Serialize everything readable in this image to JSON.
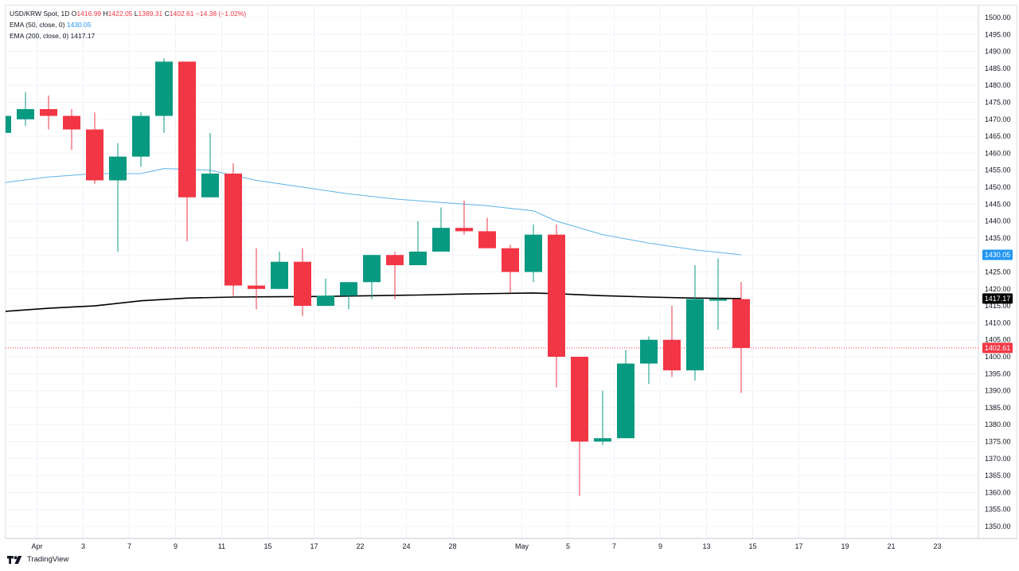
{
  "legend": {
    "symbol_line": "USD/KRW Spot, 1D",
    "o_label": "O",
    "o": "1416.99",
    "h_label": "H",
    "h": "1422.05",
    "l_label": "L",
    "l": "1389.31",
    "c_label": "C",
    "c": "1402.61",
    "change": "−14.38 (−1.02%)",
    "ema50_label": "EMA (50, close, 0)",
    "ema50_value": "1430.05",
    "ema200_label": "EMA (200, close, 0)",
    "ema200_value": "1417.17"
  },
  "attribution": "TradingView",
  "colors": {
    "up": "#089981",
    "down": "#f23645",
    "ema50": "#5fb4e6",
    "ema200": "#000000",
    "last_price_line": "#f23645",
    "grid": "#f0f3fa"
  },
  "chart_data": {
    "type": "candlestick",
    "title": "USD/KRW Spot, 1D",
    "ylim": [
      1346,
      1503
    ],
    "y_ticks": [
      1350,
      1355,
      1360,
      1365,
      1370,
      1375,
      1380,
      1385,
      1390,
      1395,
      1400,
      1405,
      1410,
      1415,
      1420,
      1425,
      1430,
      1435,
      1440,
      1445,
      1450,
      1455,
      1460,
      1465,
      1470,
      1475,
      1480,
      1485,
      1490,
      1495,
      1500
    ],
    "x_ticks": [
      {
        "label": "Apr",
        "slot": 1.5
      },
      {
        "label": "3",
        "slot": 3.5
      },
      {
        "label": "7",
        "slot": 5.5
      },
      {
        "label": "9",
        "slot": 7.5
      },
      {
        "label": "11",
        "slot": 9.5
      },
      {
        "label": "15",
        "slot": 11.5
      },
      {
        "label": "17",
        "slot": 13.5
      },
      {
        "label": "22",
        "slot": 15.5
      },
      {
        "label": "24",
        "slot": 17.5
      },
      {
        "label": "28",
        "slot": 19.5
      },
      {
        "label": "May",
        "slot": 22.5
      },
      {
        "label": "5",
        "slot": 24.5
      },
      {
        "label": "7",
        "slot": 26.5
      },
      {
        "label": "9",
        "slot": 28.5
      },
      {
        "label": "13",
        "slot": 30.5
      },
      {
        "label": "15",
        "slot": 32.5
      },
      {
        "label": "17",
        "slot": 34.5
      },
      {
        "label": "19",
        "slot": 36.5
      },
      {
        "label": "21",
        "slot": 38.5
      },
      {
        "label": "23",
        "slot": 40.5
      }
    ],
    "candles": [
      {
        "slot": 0,
        "o": 1466,
        "h": 1472,
        "l": 1465,
        "c": 1471
      },
      {
        "slot": 1,
        "o": 1470,
        "h": 1478,
        "l": 1468,
        "c": 1473
      },
      {
        "slot": 2,
        "o": 1473,
        "h": 1477,
        "l": 1467,
        "c": 1471
      },
      {
        "slot": 3,
        "o": 1471,
        "h": 1473,
        "l": 1461,
        "c": 1467
      },
      {
        "slot": 4,
        "o": 1467,
        "h": 1472,
        "l": 1451,
        "c": 1452
      },
      {
        "slot": 5,
        "o": 1452,
        "h": 1463,
        "l": 1431,
        "c": 1459
      },
      {
        "slot": 6,
        "o": 1459,
        "h": 1472,
        "l": 1456,
        "c": 1471
      },
      {
        "slot": 7,
        "o": 1471,
        "h": 1488,
        "l": 1466,
        "c": 1487
      },
      {
        "slot": 8,
        "o": 1487,
        "h": 1487,
        "l": 1434,
        "c": 1447
      },
      {
        "slot": 9,
        "o": 1447,
        "h": 1466,
        "l": 1447,
        "c": 1454
      },
      {
        "slot": 10,
        "o": 1454,
        "h": 1457,
        "l": 1418,
        "c": 1421
      },
      {
        "slot": 11,
        "o": 1421,
        "h": 1432,
        "l": 1414,
        "c": 1420
      },
      {
        "slot": 12,
        "o": 1420,
        "h": 1431,
        "l": 1420,
        "c": 1428
      },
      {
        "slot": 13,
        "o": 1428,
        "h": 1432,
        "l": 1412,
        "c": 1415
      },
      {
        "slot": 14,
        "o": 1415,
        "h": 1423,
        "l": 1415,
        "c": 1418
      },
      {
        "slot": 15,
        "o": 1418,
        "h": 1422,
        "l": 1414,
        "c": 1422
      },
      {
        "slot": 16,
        "o": 1422,
        "h": 1430,
        "l": 1417,
        "c": 1430
      },
      {
        "slot": 17,
        "o": 1430,
        "h": 1431,
        "l": 1417,
        "c": 1427
      },
      {
        "slot": 18,
        "o": 1427,
        "h": 1440,
        "l": 1427,
        "c": 1431
      },
      {
        "slot": 19,
        "o": 1431,
        "h": 1444,
        "l": 1431,
        "c": 1438
      },
      {
        "slot": 20,
        "o": 1438,
        "h": 1446,
        "l": 1436,
        "c": 1437
      },
      {
        "slot": 21,
        "o": 1437,
        "h": 1441,
        "l": 1432,
        "c": 1432
      },
      {
        "slot": 22,
        "o": 1432,
        "h": 1433,
        "l": 1419,
        "c": 1425
      },
      {
        "slot": 23,
        "o": 1425,
        "h": 1439,
        "l": 1422,
        "c": 1436
      },
      {
        "slot": 24,
        "o": 1436,
        "h": 1439,
        "l": 1391,
        "c": 1400
      },
      {
        "slot": 25,
        "o": 1400,
        "h": 1400,
        "l": 1359,
        "c": 1375
      },
      {
        "slot": 26,
        "o": 1375,
        "h": 1390,
        "l": 1374,
        "c": 1376
      },
      {
        "slot": 27,
        "o": 1376,
        "h": 1402,
        "l": 1376,
        "c": 1398
      },
      {
        "slot": 28,
        "o": 1398,
        "h": 1406,
        "l": 1392,
        "c": 1405
      },
      {
        "slot": 29,
        "o": 1405,
        "h": 1415,
        "l": 1394,
        "c": 1396
      },
      {
        "slot": 30,
        "o": 1396,
        "h": 1427,
        "l": 1393,
        "c": 1417
      },
      {
        "slot": 31,
        "o": 1417,
        "h": 1429,
        "l": 1408,
        "c": 1417
      },
      {
        "slot": 32,
        "o": 1416.99,
        "h": 1422.05,
        "l": 1389.31,
        "c": 1402.61
      }
    ],
    "series": [
      {
        "name": "EMA (50, close, 0)",
        "points": [
          [
            -0.3,
            1451
          ],
          [
            2,
            1453
          ],
          [
            4,
            1454
          ],
          [
            6,
            1454
          ],
          [
            7,
            1455.5
          ],
          [
            9,
            1455
          ],
          [
            11,
            1452
          ],
          [
            13,
            1450
          ],
          [
            15,
            1448
          ],
          [
            17,
            1446.5
          ],
          [
            19,
            1445.5
          ],
          [
            21,
            1444.5
          ],
          [
            23,
            1443
          ],
          [
            24,
            1440
          ],
          [
            26,
            1436
          ],
          [
            28,
            1433.5
          ],
          [
            30,
            1431.5
          ],
          [
            32,
            1430.05
          ]
        ]
      },
      {
        "name": "EMA (200, close, 0)",
        "points": [
          [
            -0.3,
            1413.2
          ],
          [
            2,
            1414.3
          ],
          [
            4,
            1415
          ],
          [
            6,
            1416.5
          ],
          [
            8,
            1417.3
          ],
          [
            10,
            1417.6
          ],
          [
            12,
            1417.7
          ],
          [
            14,
            1417.8
          ],
          [
            16,
            1418
          ],
          [
            18,
            1418.2
          ],
          [
            20,
            1418.5
          ],
          [
            22,
            1418.7
          ],
          [
            23,
            1418.8
          ],
          [
            24,
            1418.6
          ],
          [
            26,
            1418
          ],
          [
            28,
            1417.6
          ],
          [
            30,
            1417.3
          ],
          [
            32,
            1417.17
          ]
        ]
      }
    ],
    "price_labels": [
      {
        "name": "ema50-tag",
        "value": 1430.05,
        "text": "1430.05",
        "color": "#2196f3"
      },
      {
        "name": "ema200-tag",
        "value": 1417.17,
        "text": "1417.17",
        "color": "#000000"
      },
      {
        "name": "last-price-tag",
        "value": 1402.61,
        "text": "1402.61",
        "color": "#f23645"
      }
    ],
    "last_price": 1402.61
  }
}
